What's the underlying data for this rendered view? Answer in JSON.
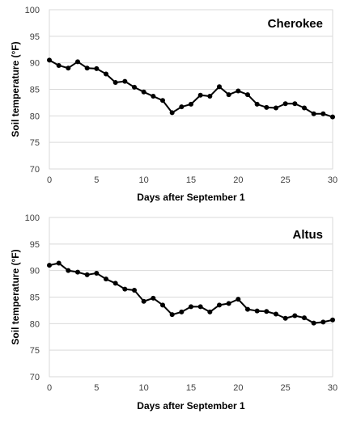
{
  "chart_data": [
    {
      "type": "line",
      "title": "Cherokee",
      "xlabel": "Days after September 1",
      "ylabel": "Soil temperature (°F)",
      "xlim": [
        0,
        30
      ],
      "ylim": [
        70,
        100
      ],
      "xticks": [
        0,
        5,
        10,
        15,
        20,
        25,
        30
      ],
      "yticks": [
        70,
        75,
        80,
        85,
        90,
        95,
        100
      ],
      "grid": "horizontal",
      "x": [
        0,
        1,
        2,
        3,
        4,
        5,
        6,
        7,
        8,
        9,
        10,
        11,
        12,
        13,
        14,
        15,
        16,
        17,
        18,
        19,
        20,
        21,
        22,
        23,
        24,
        25,
        26,
        27,
        28,
        29,
        30
      ],
      "series": [
        {
          "values": [
            90.5,
            89.5,
            89.0,
            90.2,
            89.0,
            88.9,
            87.9,
            86.3,
            86.5,
            85.4,
            84.5,
            83.7,
            82.9,
            80.6,
            81.7,
            82.2,
            83.9,
            83.7,
            85.5,
            84.0,
            84.7,
            84.0,
            82.2,
            81.6,
            81.5,
            82.3,
            82.3,
            81.5,
            80.4,
            80.4,
            79.8
          ],
          "color": "#000000"
        }
      ]
    },
    {
      "type": "line",
      "title": "Altus",
      "xlabel": "Days after September 1",
      "ylabel": "Soil temperature (°F)",
      "xlim": [
        0,
        30
      ],
      "ylim": [
        70,
        100
      ],
      "xticks": [
        0,
        5,
        10,
        15,
        20,
        25,
        30
      ],
      "yticks": [
        70,
        75,
        80,
        85,
        90,
        95,
        100
      ],
      "grid": "horizontal",
      "x": [
        0,
        1,
        2,
        3,
        4,
        5,
        6,
        7,
        8,
        9,
        10,
        11,
        12,
        13,
        14,
        15,
        16,
        17,
        18,
        19,
        20,
        21,
        22,
        23,
        24,
        25,
        26,
        27,
        28,
        29,
        30
      ],
      "series": [
        {
          "values": [
            91.0,
            91.4,
            90.0,
            89.7,
            89.2,
            89.5,
            88.4,
            87.6,
            86.5,
            86.3,
            84.2,
            84.8,
            83.5,
            81.7,
            82.2,
            83.2,
            83.2,
            82.2,
            83.5,
            83.8,
            84.6,
            82.7,
            82.4,
            82.3,
            81.8,
            81.0,
            81.5,
            81.1,
            80.1,
            80.3,
            80.7
          ],
          "color": "#000000"
        }
      ]
    }
  ]
}
